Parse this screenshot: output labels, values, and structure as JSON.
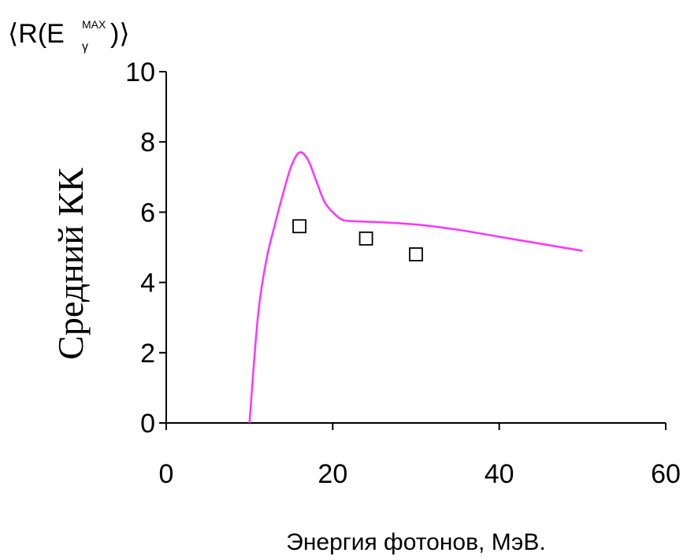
{
  "chart_data": {
    "type": "line",
    "corner_label": {
      "prefix": "⟨R(E",
      "superscript": "MAX",
      "subscript": "γ",
      "suffix": ")⟩"
    },
    "xlabel": "Энергия фотонов, МэВ.",
    "ylabel": "Средний КК",
    "xlim": [
      0,
      60
    ],
    "ylim": [
      0,
      10
    ],
    "xticks": [
      0,
      20,
      40,
      60
    ],
    "yticks": [
      0,
      2,
      4,
      6,
      8,
      10
    ],
    "grid": false,
    "colors": {
      "line": "#ff33ff",
      "markers": "#000000",
      "axes": "#000000"
    },
    "series": [
      {
        "type": "line",
        "x": [
          10,
          11,
          12,
          13,
          14,
          15,
          16,
          17,
          18,
          19,
          20,
          21,
          22,
          25,
          30,
          35,
          40,
          45,
          50
        ],
        "y": [
          0,
          3.0,
          4.6,
          5.6,
          6.5,
          7.3,
          7.7,
          7.5,
          6.9,
          6.3,
          6.0,
          5.8,
          5.75,
          5.72,
          5.65,
          5.5,
          5.3,
          5.1,
          4.9
        ]
      },
      {
        "type": "scatter",
        "marker": "square-open",
        "x": [
          16,
          24,
          30
        ],
        "y": [
          5.6,
          5.25,
          4.8
        ]
      }
    ]
  }
}
